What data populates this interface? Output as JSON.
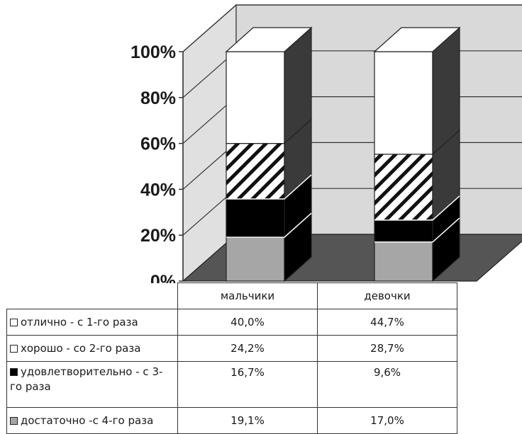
{
  "chart_data": {
    "type": "bar",
    "stacked": true,
    "three_d": true,
    "categories": [
      "мальчики",
      "девочки"
    ],
    "series": [
      {
        "name": "достаточно -с 4-го раза",
        "values": [
          19.1,
          17.0
        ],
        "display": [
          "19,1%",
          "17,0%"
        ],
        "color": "#a6a6a6"
      },
      {
        "name": "удовлетворительно - с 3-го раза",
        "values": [
          16.7,
          9.6
        ],
        "display": [
          "16,7%",
          "9,6%"
        ],
        "color": "#000000"
      },
      {
        "name": "хорошо - со 2-го раза",
        "values": [
          24.2,
          28.7
        ],
        "display": [
          "24,2%",
          "28,7%"
        ],
        "color": "#ffffff"
      },
      {
        "name": "отлично - с 1-го раза",
        "values": [
          40.0,
          44.7
        ],
        "display": [
          "40,0%",
          "44,7%"
        ],
        "color": "#ffffff"
      }
    ],
    "yticks": [
      "0%",
      "20%",
      "40%",
      "60%",
      "80%",
      "100%"
    ],
    "ylim": [
      0,
      100
    ],
    "grid": true,
    "legend": "data-table-below"
  },
  "table": {
    "rows": [
      {
        "swatch": "#ffffff",
        "label": "отлично - с 1-го раза",
        "v1": "40,0%",
        "v2": "44,7%"
      },
      {
        "swatch": "#ffffff",
        "label": "хорошо - со 2-го раза",
        "v1": "24,2%",
        "v2": "28,7%"
      },
      {
        "swatch": "#000000",
        "label": "удовлетворительно - с 3-го раза",
        "v1": "16,7%",
        "v2": "9,6%"
      },
      {
        "swatch": "#a6a6a6",
        "label": "достаточно -с 4-го раза",
        "v1": "19,1%",
        "v2": "17,0%"
      }
    ]
  }
}
